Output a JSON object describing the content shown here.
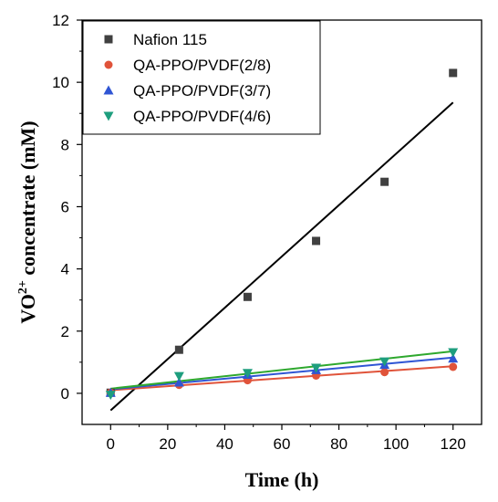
{
  "chart_data": {
    "type": "scatter",
    "xlabel": "Time (h)",
    "ylabel_main": "VO",
    "ylabel_sup": "2+",
    "ylabel_rest": " concentrate (mM)",
    "xlim": [
      -10,
      130
    ],
    "ylim": [
      -1,
      12
    ],
    "xticks": [
      0,
      20,
      40,
      60,
      80,
      100,
      120
    ],
    "yticks": [
      0,
      2,
      4,
      6,
      8,
      10,
      12
    ],
    "grid": false,
    "legend_position": "top-left",
    "series": [
      {
        "name": "Nafion 115",
        "marker": "square",
        "color": "#404040",
        "line_color": "#000000",
        "x": [
          0,
          24,
          48,
          72,
          96,
          120
        ],
        "y": [
          0.02,
          1.4,
          3.1,
          4.9,
          6.8,
          10.3
        ],
        "fit": [
          [
            0,
            -0.55
          ],
          [
            120,
            9.35
          ]
        ]
      },
      {
        "name": "QA-PPO/PVDF(2/8)",
        "marker": "circle",
        "color": "#e0533a",
        "line_color": "#e0533a",
        "x": [
          0,
          24,
          48,
          72,
          96,
          120
        ],
        "y": [
          0.02,
          0.27,
          0.42,
          0.57,
          0.68,
          0.85
        ],
        "fit": [
          [
            0,
            0.1
          ],
          [
            120,
            0.87
          ]
        ]
      },
      {
        "name": "QA-PPO/PVDF(3/7)",
        "marker": "triangle-up",
        "color": "#2f55d4",
        "line_color": "#2f55d4",
        "x": [
          0,
          24,
          48,
          72,
          96,
          120
        ],
        "y": [
          0.02,
          0.35,
          0.6,
          0.75,
          0.92,
          1.12
        ],
        "fit": [
          [
            0,
            0.13
          ],
          [
            120,
            1.15
          ]
        ]
      },
      {
        "name": "QA-PPO/PVDF(4/6)",
        "marker": "triangle-down",
        "color": "#1e9e7e",
        "line_color": "#2ea82e",
        "x": [
          0,
          24,
          48,
          72,
          96,
          120
        ],
        "y": [
          -0.05,
          0.55,
          0.65,
          0.82,
          1.02,
          1.32
        ],
        "fit": [
          [
            0,
            0.15
          ],
          [
            120,
            1.35
          ]
        ]
      }
    ]
  }
}
